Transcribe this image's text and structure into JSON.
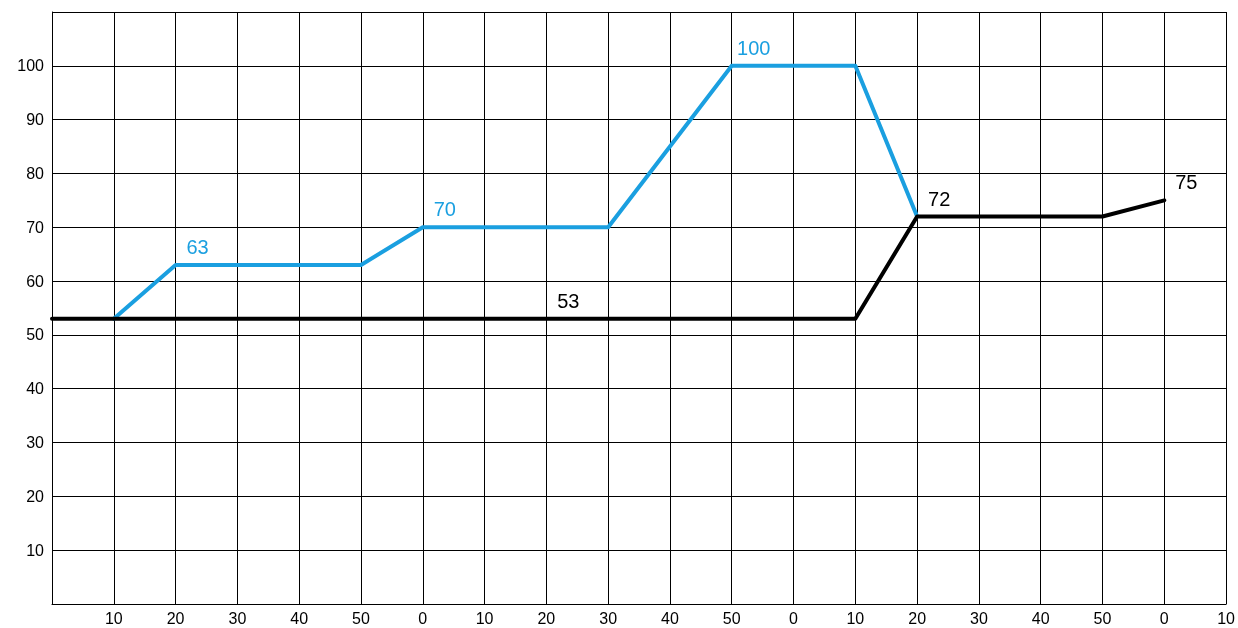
{
  "chart_data": {
    "type": "line",
    "categories": [
      null,
      "10",
      "20",
      "30",
      "40",
      "50",
      "0",
      "10",
      "20",
      "30",
      "40",
      "50",
      "0",
      "10",
      "20",
      "30",
      "40",
      "50",
      "0",
      "10"
    ],
    "series": [
      {
        "color": "#1a9fe0",
        "values": [
          null,
          53,
          63,
          63,
          63,
          63,
          70,
          70,
          70,
          70,
          85,
          100,
          100,
          100,
          72,
          null,
          null,
          null,
          null,
          null
        ],
        "value_labels": [
          null,
          null,
          "63",
          null,
          null,
          null,
          "70",
          null,
          null,
          null,
          null,
          "100",
          null,
          null,
          null,
          null,
          null,
          null,
          null,
          null
        ]
      },
      {
        "color": "#000000",
        "values": [
          53,
          53,
          53,
          53,
          53,
          53,
          53,
          53,
          53,
          53,
          53,
          53,
          53,
          53,
          72,
          72,
          72,
          72,
          75,
          null
        ],
        "value_labels": [
          null,
          null,
          null,
          null,
          null,
          null,
          null,
          null,
          "53",
          null,
          null,
          null,
          null,
          null,
          "72",
          null,
          null,
          null,
          "75",
          null
        ]
      }
    ],
    "ylim": [
      0,
      110
    ],
    "yticks": [
      10,
      20,
      30,
      40,
      50,
      60,
      70,
      80,
      90,
      100
    ],
    "grid": true,
    "marker": "none",
    "line_style": "solid"
  }
}
